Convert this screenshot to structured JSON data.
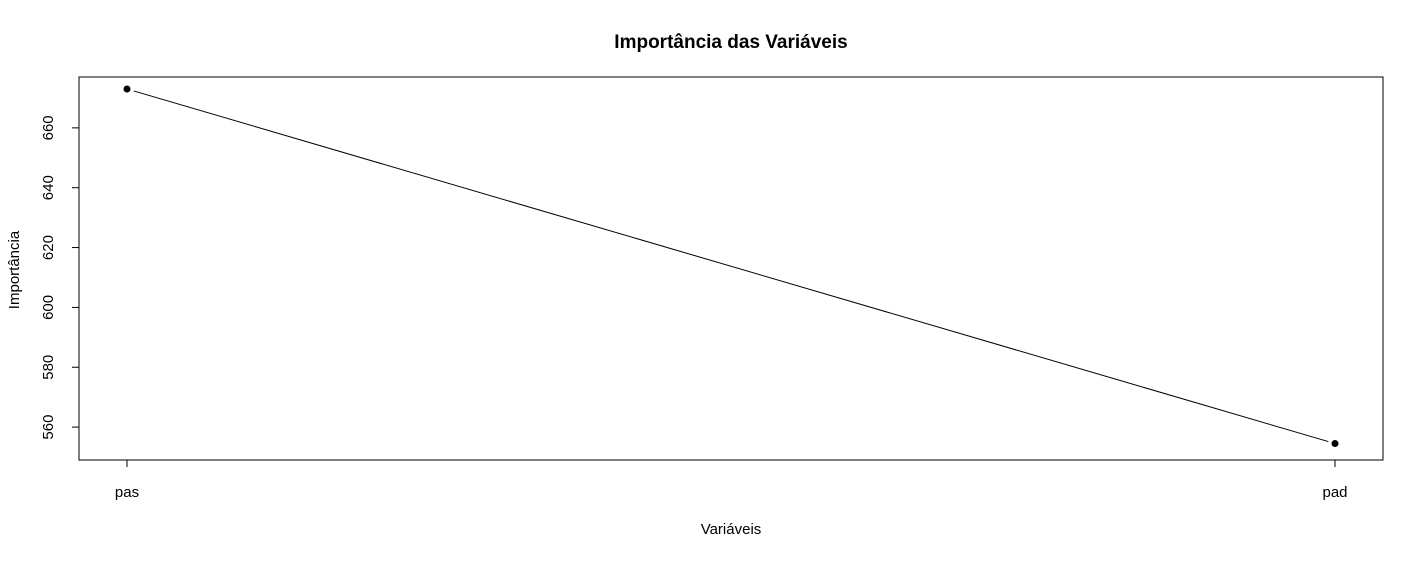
{
  "chart_data": {
    "type": "line",
    "title": "Importância das Variáveis",
    "xlabel": "Variáveis",
    "ylabel": "Importância",
    "categories": [
      "pas",
      "pad"
    ],
    "series": [
      {
        "values": [
          673,
          554.5
        ]
      }
    ],
    "ylim": [
      549,
      677
    ],
    "yticks": [
      560,
      580,
      600,
      620,
      640,
      660
    ],
    "ytick_labels": [
      "560",
      "580",
      "600",
      "620",
      "640",
      "660"
    ],
    "grid": false,
    "legend": "none",
    "line_color": "#000000",
    "marker": "filled-circle"
  }
}
